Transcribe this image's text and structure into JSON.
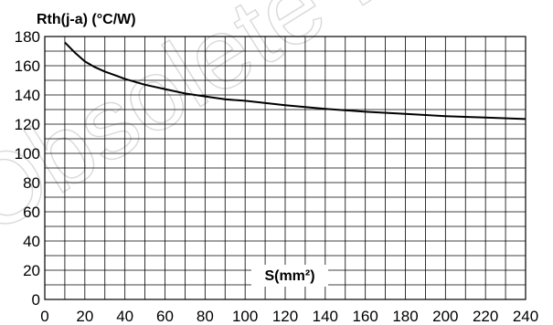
{
  "watermark": "Obsolete Product(s) - Obsolete Product(s)",
  "chart_data": {
    "type": "line",
    "title": "",
    "ylabel": "Rth(j-a) (°C/W)",
    "xlabel": "S(mm²)",
    "xlim": [
      0,
      240
    ],
    "ylim": [
      0,
      180
    ],
    "grid": true,
    "x_ticks": [
      0,
      20,
      40,
      60,
      80,
      100,
      120,
      140,
      160,
      180,
      200,
      220,
      240
    ],
    "y_ticks": [
      0,
      20,
      40,
      60,
      80,
      100,
      120,
      140,
      160,
      180
    ],
    "x_tick_labels": [
      "0",
      "20",
      "40",
      "60",
      "80",
      "100",
      "120",
      "140",
      "160",
      "180",
      "200",
      "220",
      "240"
    ],
    "y_tick_labels": [
      "0",
      "20",
      "40",
      "60",
      "80",
      "100",
      "120",
      "140",
      "160",
      "180"
    ],
    "series": [
      {
        "x": [
          10,
          15,
          20,
          25,
          30,
          40,
          50,
          60,
          70,
          80,
          90,
          100,
          120,
          140,
          160,
          180,
          200,
          220,
          240
        ],
        "y": [
          176,
          169,
          163,
          159,
          156,
          151,
          147,
          144,
          141,
          139,
          137,
          136,
          133,
          130.5,
          128.5,
          127,
          125.5,
          124.5,
          123.5
        ]
      }
    ]
  }
}
